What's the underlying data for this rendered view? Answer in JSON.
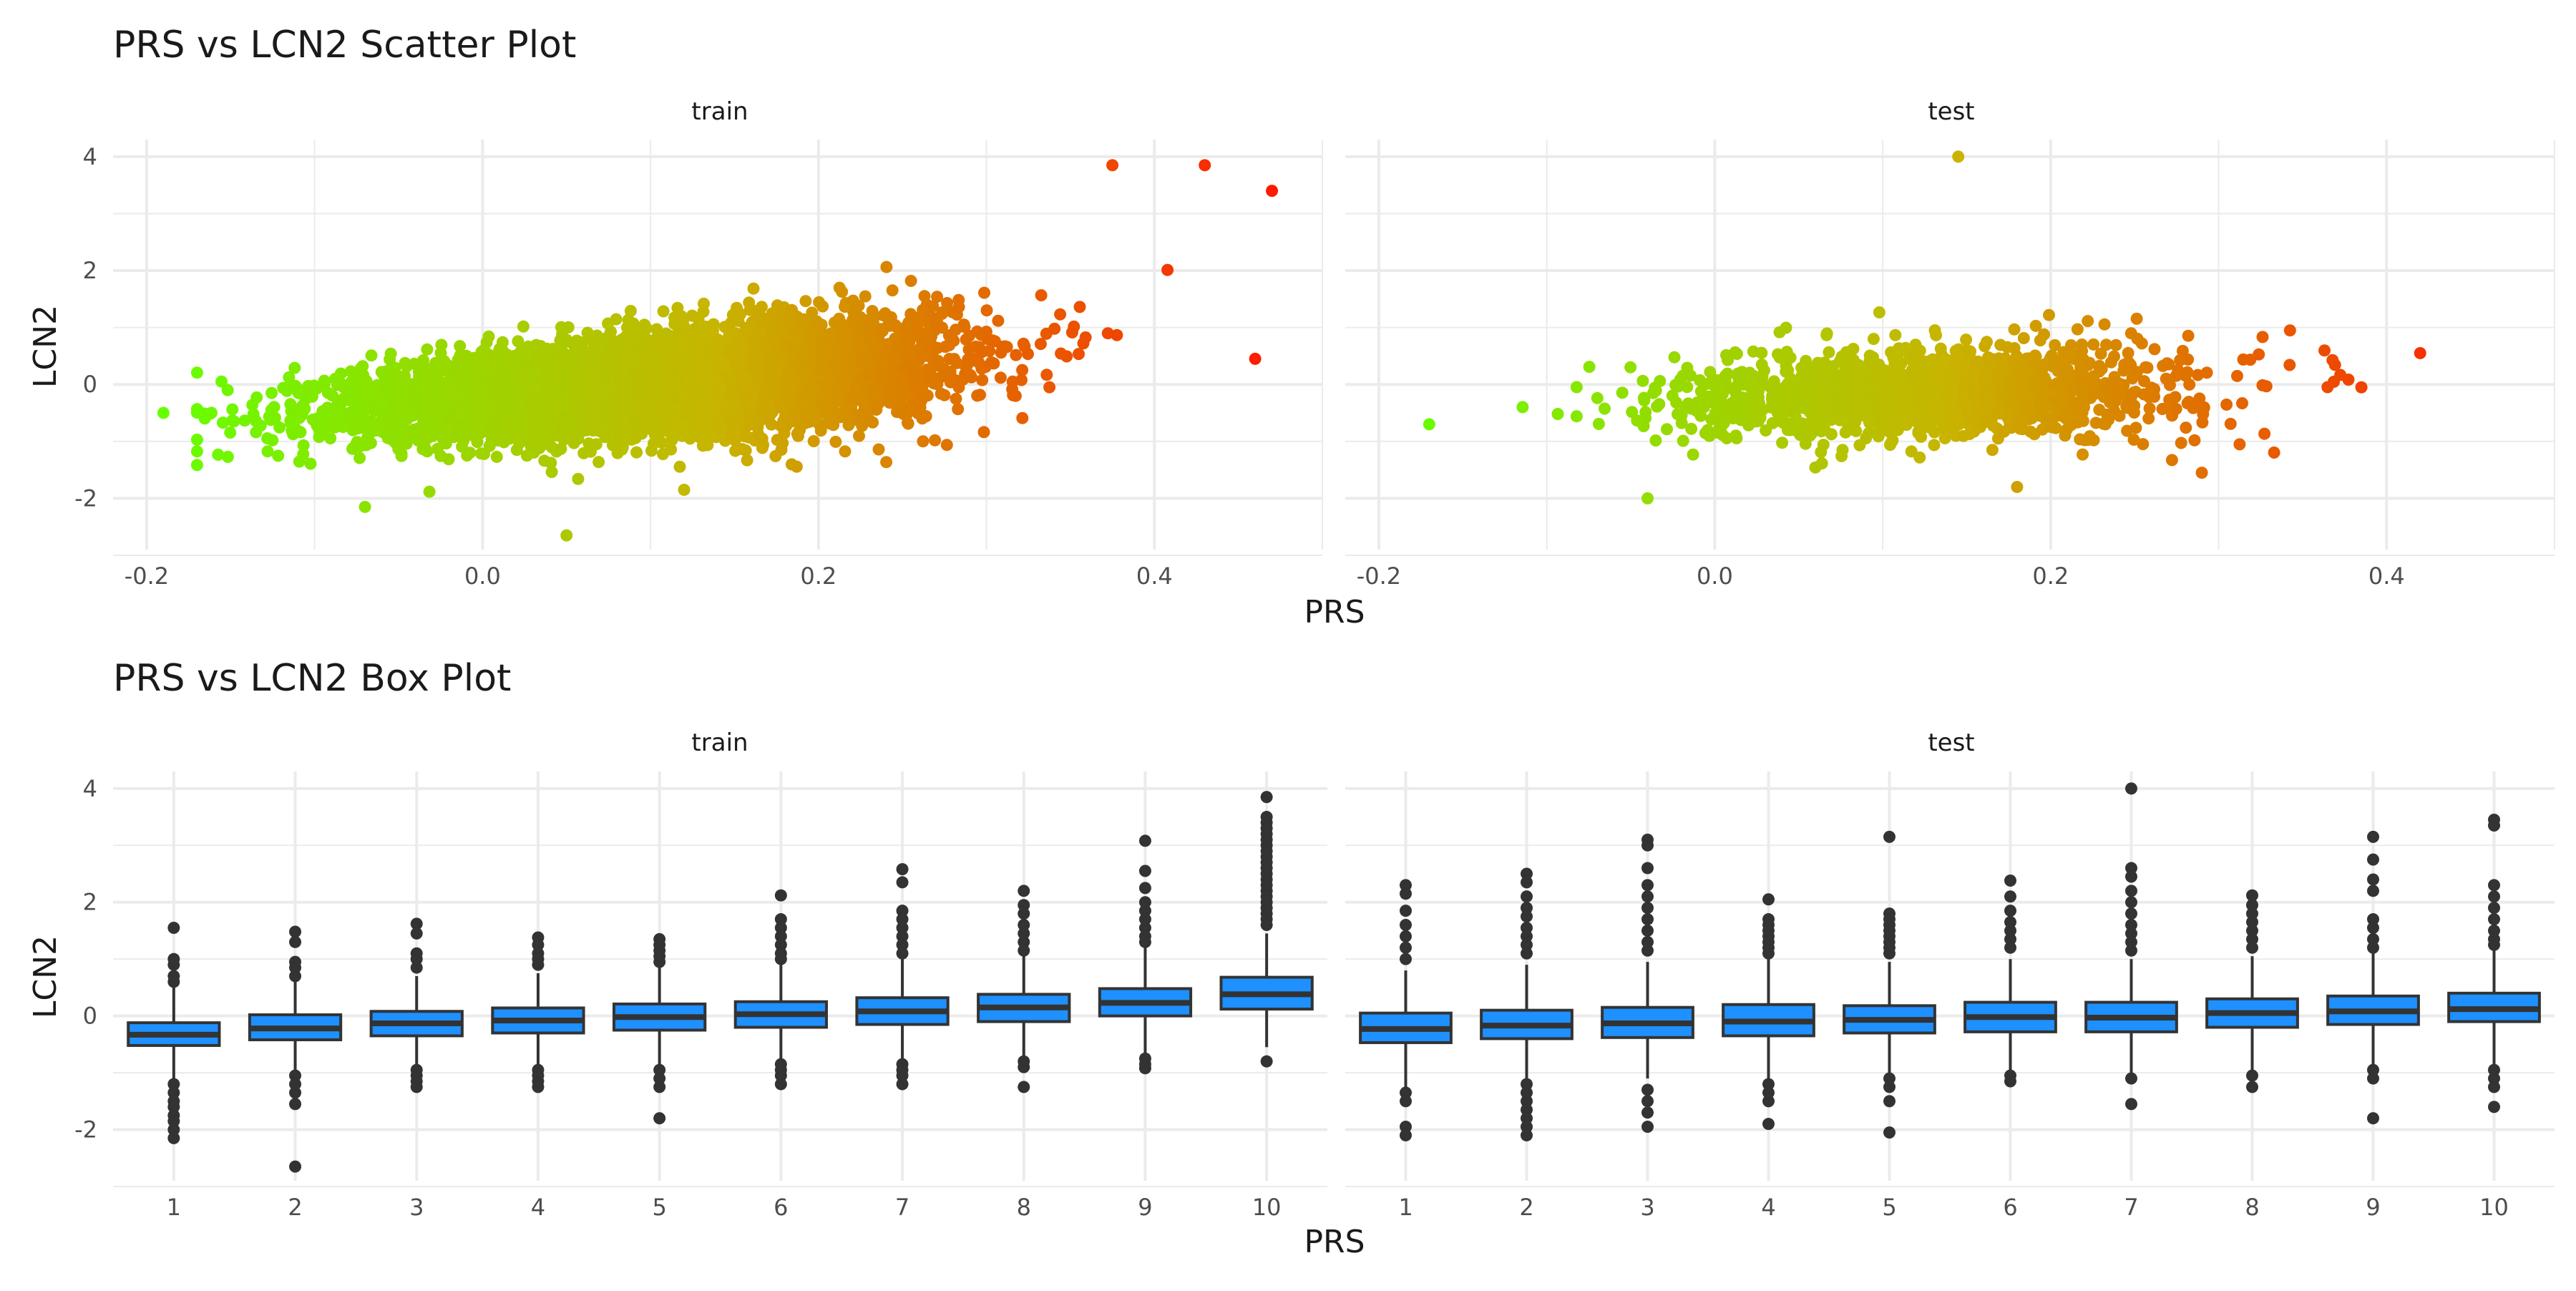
{
  "figure": {
    "plot_title_top": "PRS vs LCN2 Scatter Plot",
    "plot_title_bottom": "PRS vs LCN2 Box Plot"
  },
  "colors": {
    "background": "#ffffff",
    "grid": "#ebebeb",
    "text": "#1a1a1a",
    "tick_text": "#4d4d4d",
    "gradient_low": "#66ff00",
    "gradient_mid": "#c8b400",
    "gradient_high": "#ff1a00",
    "box_fill": "#1e90ff",
    "box_line": "#333333",
    "outlier": "#333333"
  },
  "chart_data": [
    {
      "type": "scatter",
      "title": "PRS vs LCN2 Scatter Plot",
      "xlabel": "PRS",
      "ylabel": "LCN2",
      "xlim": [
        -0.22,
        0.5
      ],
      "ylim": [
        -2.9,
        4.3
      ],
      "x_ticks": [
        -0.2,
        0.0,
        0.2,
        0.4
      ],
      "x_tick_labels": [
        "-0.2",
        "0.0",
        "0.2",
        "0.4"
      ],
      "y_ticks": [
        -2,
        0,
        2,
        4
      ],
      "y_tick_labels": [
        "-2",
        "0",
        "2",
        "4"
      ],
      "grid": true,
      "legend": "none",
      "color_encoding": "gradient by PRS (green low to red high)",
      "facets": [
        {
          "name": "train",
          "approx_n": 6000,
          "trend": "positive",
          "x_range": [
            -0.19,
            0.47
          ],
          "notable_points": [
            {
              "x": -0.19,
              "y": -0.5
            },
            {
              "x": 0.47,
              "y": 3.4
            },
            {
              "x": 0.43,
              "y": 3.85
            },
            {
              "x": 0.375,
              "y": 3.85
            },
            {
              "x": 0.46,
              "y": 0.45
            },
            {
              "x": 0.05,
              "y": -2.65
            },
            {
              "x": -0.07,
              "y": -2.15
            },
            {
              "x": 0.12,
              "y": -1.85
            }
          ]
        },
        {
          "name": "test",
          "approx_n": 1500,
          "trend": "weak positive",
          "x_range": [
            -0.17,
            0.42
          ],
          "notable_points": [
            {
              "x": -0.17,
              "y": -0.7
            },
            {
              "x": 0.145,
              "y": 4.0
            },
            {
              "x": 0.42,
              "y": 0.55
            },
            {
              "x": 0.385,
              "y": -0.05
            },
            {
              "x": -0.04,
              "y": -2.0
            },
            {
              "x": 0.29,
              "y": -1.55
            },
            {
              "x": 0.18,
              "y": -1.8
            }
          ]
        }
      ]
    },
    {
      "type": "box",
      "title": "PRS vs LCN2 Box Plot",
      "xlabel": "PRS",
      "ylabel": "LCN2",
      "categories": [
        "1",
        "2",
        "3",
        "4",
        "5",
        "6",
        "7",
        "8",
        "9",
        "10"
      ],
      "ylim": [
        -2.9,
        4.3
      ],
      "y_ticks": [
        -2,
        0,
        2,
        4
      ],
      "y_tick_labels": [
        "-2",
        "0",
        "2",
        "4"
      ],
      "grid": true,
      "legend": "none",
      "facets": [
        {
          "name": "train",
          "boxes": [
            {
              "q1": -0.52,
              "median": -0.33,
              "q3": -0.12,
              "lo": -1.1,
              "hi": 0.5,
              "outliers": [
                1.55,
                1.0,
                0.9,
                0.7,
                0.6,
                -1.2,
                -1.35,
                -1.5,
                -1.6,
                -1.75,
                -1.85,
                -2.0,
                -2.15
              ]
            },
            {
              "q1": -0.42,
              "median": -0.22,
              "q3": 0.02,
              "lo": -1.0,
              "hi": 0.6,
              "outliers": [
                1.48,
                1.3,
                0.95,
                0.85,
                0.7,
                -1.05,
                -1.2,
                -1.35,
                -1.55,
                -2.65
              ]
            },
            {
              "q1": -0.35,
              "median": -0.13,
              "q3": 0.08,
              "lo": -0.9,
              "hi": 0.7,
              "outliers": [
                1.62,
                1.45,
                1.1,
                1.0,
                0.85,
                -0.95,
                -1.05,
                -1.15,
                -1.25
              ]
            },
            {
              "q1": -0.3,
              "median": -0.08,
              "q3": 0.14,
              "lo": -0.85,
              "hi": 0.75,
              "outliers": [
                1.38,
                1.25,
                1.1,
                1.0,
                0.9,
                -0.95,
                -1.05,
                -1.15,
                -1.25
              ]
            },
            {
              "q1": -0.25,
              "median": -0.02,
              "q3": 0.21,
              "lo": -0.85,
              "hi": 0.85,
              "outliers": [
                1.35,
                1.25,
                1.15,
                1.05,
                0.95,
                -0.95,
                -1.1,
                -1.25,
                -1.8
              ]
            },
            {
              "q1": -0.2,
              "median": 0.03,
              "q3": 0.25,
              "lo": -0.8,
              "hi": 0.9,
              "outliers": [
                2.12,
                1.7,
                1.55,
                1.4,
                1.25,
                1.1,
                1.0,
                -0.85,
                -0.95,
                -1.05,
                -1.2
              ]
            },
            {
              "q1": -0.15,
              "median": 0.08,
              "q3": 0.32,
              "lo": -0.75,
              "hi": 1.0,
              "outliers": [
                2.58,
                2.35,
                1.85,
                1.7,
                1.55,
                1.4,
                1.25,
                1.1,
                -0.85,
                -0.95,
                -1.05,
                -1.2
              ]
            },
            {
              "q1": -0.1,
              "median": 0.15,
              "q3": 0.38,
              "lo": -0.7,
              "hi": 1.05,
              "outliers": [
                2.2,
                1.95,
                1.8,
                1.6,
                1.45,
                1.3,
                1.15,
                -0.8,
                -0.9,
                -1.25
              ]
            },
            {
              "q1": 0.0,
              "median": 0.23,
              "q3": 0.48,
              "lo": -0.65,
              "hi": 1.2,
              "outliers": [
                3.08,
                2.55,
                2.25,
                2.0,
                1.85,
                1.7,
                1.55,
                1.4,
                1.3,
                -0.75,
                -0.85,
                -0.92
              ]
            },
            {
              "q1": 0.12,
              "median": 0.38,
              "q3": 0.68,
              "lo": -0.55,
              "hi": 1.45,
              "outliers": [
                3.85,
                3.5,
                3.4,
                3.3,
                3.2,
                3.1,
                3.0,
                2.9,
                2.8,
                2.7,
                2.6,
                2.5,
                2.4,
                2.3,
                2.2,
                2.1,
                2.0,
                1.9,
                1.8,
                1.7,
                1.6,
                -0.8
              ]
            }
          ]
        },
        {
          "name": "test",
          "boxes": [
            {
              "q1": -0.47,
              "median": -0.23,
              "q3": 0.05,
              "lo": -1.25,
              "hi": 0.8,
              "outliers": [
                2.3,
                2.15,
                1.85,
                1.6,
                1.4,
                1.2,
                1.0,
                -1.35,
                -1.5,
                -1.95,
                -2.1
              ]
            },
            {
              "q1": -0.4,
              "median": -0.17,
              "q3": 0.1,
              "lo": -1.1,
              "hi": 0.9,
              "outliers": [
                2.5,
                2.35,
                2.1,
                1.9,
                1.75,
                1.55,
                1.4,
                1.25,
                1.1,
                -1.2,
                -1.35,
                -1.5,
                -1.65,
                -1.8,
                -1.95,
                -2.1
              ]
            },
            {
              "q1": -0.38,
              "median": -0.13,
              "q3": 0.15,
              "lo": -1.1,
              "hi": 0.95,
              "outliers": [
                3.1,
                3.0,
                2.6,
                2.3,
                2.1,
                1.9,
                1.7,
                1.5,
                1.3,
                1.15,
                -1.3,
                -1.5,
                -1.7,
                -1.95
              ]
            },
            {
              "q1": -0.35,
              "median": -0.1,
              "q3": 0.2,
              "lo": -1.1,
              "hi": 1.0,
              "outliers": [
                2.05,
                1.7,
                1.6,
                1.5,
                1.4,
                1.3,
                1.2,
                1.1,
                -1.2,
                -1.35,
                -1.5,
                -1.9
              ]
            },
            {
              "q1": -0.3,
              "median": -0.07,
              "q3": 0.18,
              "lo": -1.0,
              "hi": 0.95,
              "outliers": [
                3.15,
                1.8,
                1.7,
                1.6,
                1.5,
                1.4,
                1.3,
                1.2,
                1.1,
                -1.1,
                -1.25,
                -1.5,
                -2.05
              ]
            },
            {
              "q1": -0.28,
              "median": -0.02,
              "q3": 0.24,
              "lo": -1.0,
              "hi": 1.0,
              "outliers": [
                2.38,
                2.1,
                1.85,
                1.65,
                1.5,
                1.35,
                1.2,
                -1.05,
                -1.15
              ]
            },
            {
              "q1": -0.28,
              "median": -0.03,
              "q3": 0.24,
              "lo": -1.0,
              "hi": 1.0,
              "outliers": [
                4.0,
                2.6,
                2.45,
                2.2,
                2.0,
                1.8,
                1.6,
                1.45,
                1.3,
                1.15,
                -1.1,
                -1.55
              ]
            },
            {
              "q1": -0.2,
              "median": 0.05,
              "q3": 0.3,
              "lo": -0.95,
              "hi": 1.05,
              "outliers": [
                2.12,
                1.95,
                1.8,
                1.65,
                1.5,
                1.35,
                1.2,
                -1.05,
                -1.25
              ]
            },
            {
              "q1": -0.15,
              "median": 0.08,
              "q3": 0.35,
              "lo": -0.9,
              "hi": 1.1,
              "outliers": [
                3.15,
                2.75,
                2.4,
                2.2,
                1.7,
                1.55,
                1.35,
                1.2,
                -0.95,
                -1.1,
                -1.8
              ]
            },
            {
              "q1": -0.1,
              "median": 0.12,
              "q3": 0.4,
              "lo": -0.85,
              "hi": 1.15,
              "outliers": [
                3.45,
                3.35,
                2.3,
                2.1,
                1.9,
                1.7,
                1.5,
                1.35,
                1.25,
                -0.95,
                -1.1,
                -1.25,
                -1.6
              ]
            }
          ]
        }
      ]
    }
  ]
}
